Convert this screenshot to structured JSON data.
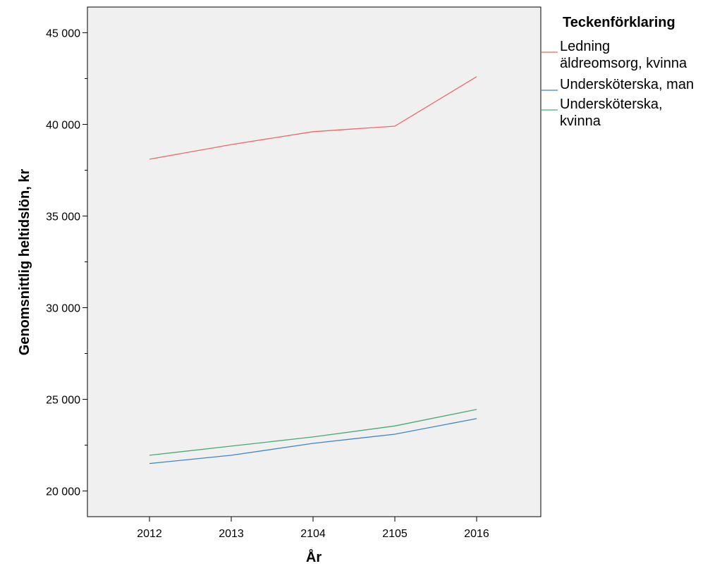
{
  "chart_data": {
    "type": "line",
    "xlabel": "År",
    "ylabel": "Genomsnittlig heltidslön, kr",
    "categories": [
      "2012",
      "2013",
      "2104",
      "2105",
      "2016"
    ],
    "yticks": [
      "20 000",
      "25 000",
      "30 000",
      "35 000",
      "40 000",
      "45 000"
    ],
    "ylim": [
      18600,
      46400
    ],
    "grid": false,
    "legend": {
      "title": "Teckenförklaring",
      "placement": "right",
      "entries": [
        [
          "Ledning",
          "äldreomsorg, kvinna"
        ],
        [
          "Undersköterska, man"
        ],
        [
          "Undersköterska,",
          "kvinna"
        ]
      ]
    },
    "series": [
      {
        "name": "Ledning äldreomsorg, kvinna",
        "color": "#e8696b",
        "values": [
          38100,
          38900,
          39600,
          39900,
          42600
        ]
      },
      {
        "name": "Undersköterska, man",
        "color": "#3f85c3",
        "values": [
          21500,
          21950,
          22600,
          23100,
          23950
        ]
      },
      {
        "name": "Undersköterska, kvinna",
        "color": "#4aa872",
        "values": [
          21950,
          22450,
          22950,
          23550,
          24450
        ]
      }
    ],
    "colors": {
      "plot_background": "#f0f0f0",
      "axis": "#000000"
    }
  }
}
